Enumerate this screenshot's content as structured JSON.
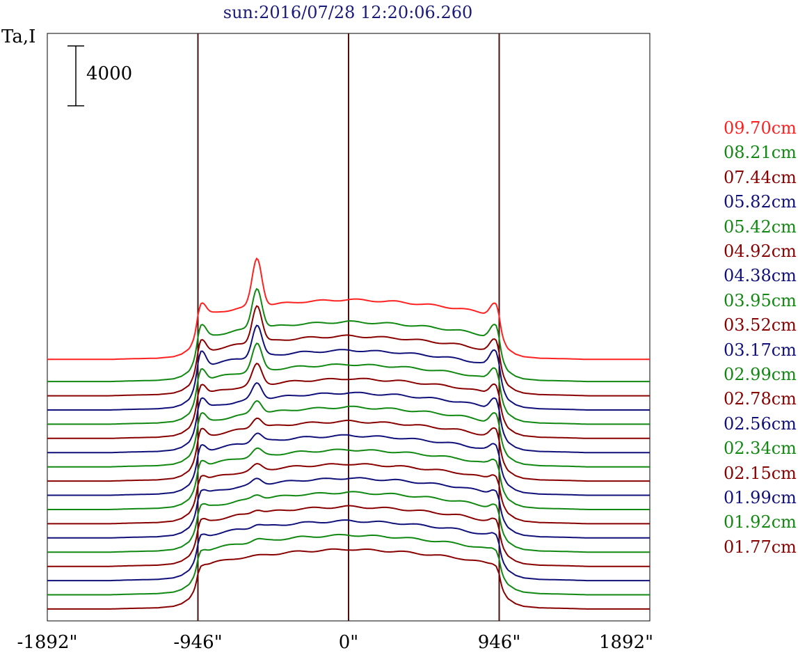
{
  "chart_data": {
    "type": "line",
    "title": "sun:2016/07/28 12:20:06.260",
    "ylabel": "Ta,I",
    "xlabel": "",
    "scale_bar": {
      "label": "4000",
      "value": 4000
    },
    "x_ticks": [
      "-1892\"",
      "-946\"",
      "0\"",
      "946\"",
      "1892\""
    ],
    "x_tick_values": [
      -1892,
      -946,
      0,
      946,
      1892
    ],
    "xlim": [
      -1892,
      1892
    ],
    "vertical_lines": [
      -946,
      0,
      946
    ],
    "grid": false,
    "legend_position": "right",
    "profile": {
      "x": [
        -1892,
        -1500,
        -1380,
        -1200,
        -1100,
        -1050,
        -1000,
        -975,
        -960,
        -946,
        -930,
        -900,
        -850,
        -700,
        -500,
        -300,
        -100,
        0,
        100,
        300,
        500,
        700,
        850,
        900,
        930,
        946,
        960,
        975,
        1000,
        1050,
        1100,
        1200,
        1380,
        1500,
        1892
      ],
      "y": [
        0,
        0,
        40,
        80,
        180,
        350,
        700,
        1100,
        1500,
        2200,
        2700,
        2900,
        3100,
        3400,
        3650,
        3850,
        3950,
        4000,
        3950,
        3850,
        3650,
        3400,
        3100,
        2900,
        2700,
        2200,
        1500,
        1100,
        700,
        350,
        180,
        80,
        40,
        0,
        0
      ]
    },
    "series": [
      {
        "name": "09.70cm",
        "color": "#ff2020",
        "offset": 16450,
        "peak": 3200,
        "limb": 1000
      },
      {
        "name": "08.21cm",
        "color": "#118811",
        "offset": 14970,
        "peak": 2700,
        "limb": 1000
      },
      {
        "name": "07.44cm",
        "color": "#880000",
        "offset": 14020,
        "peak": 2500,
        "limb": 950
      },
      {
        "name": "05.82cm",
        "color": "#10107a",
        "offset": 13070,
        "peak": 2100,
        "limb": 1200
      },
      {
        "name": "05.42cm",
        "color": "#118811",
        "offset": 12120,
        "peak": 1800,
        "limb": 1000
      },
      {
        "name": "04.92cm",
        "color": "#880000",
        "offset": 11170,
        "peak": 1400,
        "limb": 900
      },
      {
        "name": "04.38cm",
        "color": "#10107a",
        "offset": 10220,
        "peak": 1100,
        "limb": 900
      },
      {
        "name": "03.95cm",
        "color": "#118811",
        "offset": 9270,
        "peak": 900,
        "limb": 800
      },
      {
        "name": "03.52cm",
        "color": "#880000",
        "offset": 8320,
        "peak": 700,
        "limb": 700
      },
      {
        "name": "03.17cm",
        "color": "#10107a",
        "offset": 7370,
        "peak": 600,
        "limb": 600
      },
      {
        "name": "02.99cm",
        "color": "#118811",
        "offset": 6420,
        "peak": 500,
        "limb": 550
      },
      {
        "name": "02.78cm",
        "color": "#880000",
        "offset": 5470,
        "peak": 400,
        "limb": 500
      },
      {
        "name": "02.56cm",
        "color": "#10107a",
        "offset": 4520,
        "peak": 400,
        "limb": 450
      },
      {
        "name": "02.34cm",
        "color": "#118811",
        "offset": 3570,
        "peak": 300,
        "limb": 400
      },
      {
        "name": "02.15cm",
        "color": "#880000",
        "offset": 2620,
        "peak": 250,
        "limb": 350
      },
      {
        "name": "01.99cm",
        "color": "#10107a",
        "offset": 1670,
        "peak": 200,
        "limb": 300
      },
      {
        "name": "01.92cm",
        "color": "#118811",
        "offset": 720,
        "peak": 150,
        "limb": 250
      },
      {
        "name": "01.77cm",
        "color": "#880000",
        "offset": -230,
        "peak": 0,
        "limb": 200
      }
    ]
  }
}
